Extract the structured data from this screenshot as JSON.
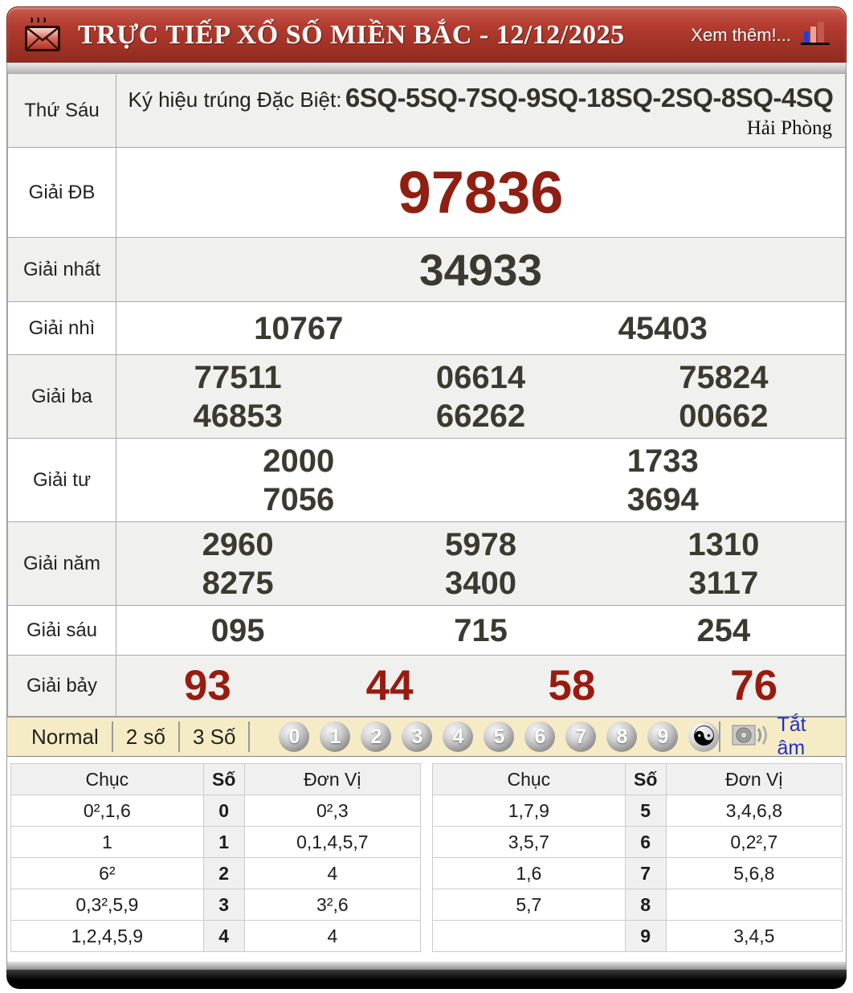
{
  "header": {
    "title": "TRỰC TIẾP XỔ SỐ MIỀN BẮC - 12/12/2025",
    "more_label": "Xem thêm!...",
    "icons": {
      "left": "envelope-icon",
      "right": "bar-chart-icon"
    }
  },
  "results": {
    "day_label": "Thứ Sáu",
    "symbol_label": "Ký hiệu trúng Đặc Biệt:",
    "symbol_codes": "6SQ-5SQ-7SQ-9SQ-18SQ-2SQ-8SQ-4SQ",
    "province": "Hải Phòng",
    "prizes": [
      {
        "label": "Giải ĐB",
        "kind": "db",
        "rows": [
          [
            "97836"
          ]
        ]
      },
      {
        "label": "Giải nhất",
        "kind": "first",
        "rows": [
          [
            "34933"
          ]
        ]
      },
      {
        "label": "Giải nhì",
        "kind": "normal",
        "rows": [
          [
            "10767",
            "45403"
          ]
        ]
      },
      {
        "label": "Giải ba",
        "kind": "normal",
        "rows": [
          [
            "77511",
            "06614",
            "75824"
          ],
          [
            "46853",
            "66262",
            "00662"
          ]
        ]
      },
      {
        "label": "Giải tư",
        "kind": "normal",
        "rows": [
          [
            "2000",
            "1733"
          ],
          [
            "7056",
            "3694"
          ]
        ]
      },
      {
        "label": "Giải năm",
        "kind": "normal",
        "rows": [
          [
            "2960",
            "5978",
            "1310"
          ],
          [
            "8275",
            "3400",
            "3117"
          ]
        ]
      },
      {
        "label": "Giải sáu",
        "kind": "normal",
        "rows": [
          [
            "095",
            "715",
            "254"
          ]
        ]
      },
      {
        "label": "Giải bảy",
        "kind": "seven",
        "rows": [
          [
            "93",
            "44",
            "58",
            "76"
          ]
        ]
      }
    ]
  },
  "controls": {
    "modes": [
      "Normal",
      "2 số",
      "3 Số"
    ],
    "balls": [
      "0",
      "1",
      "2",
      "3",
      "4",
      "5",
      "6",
      "7",
      "8",
      "9"
    ],
    "yinyang_glyph": "☯",
    "mute_label": "Tắt âm",
    "speaker_icon": "speaker-icon"
  },
  "summary": {
    "headers": {
      "tens": "Chục",
      "digit": "Số",
      "units": "Đơn Vị"
    },
    "left_rows": [
      {
        "tens": "0²,1,6",
        "digit": "0",
        "units": "0²,3"
      },
      {
        "tens": "1",
        "digit": "1",
        "units": "0,1,4,5,7"
      },
      {
        "tens": "6²",
        "digit": "2",
        "units": "4"
      },
      {
        "tens": "0,3²,5,9",
        "digit": "3",
        "units": "3²,6"
      },
      {
        "tens": "1,2,4,5,9",
        "digit": "4",
        "units": "4"
      }
    ],
    "right_rows": [
      {
        "tens": "1,7,9",
        "digit": "5",
        "units": "3,4,6,8"
      },
      {
        "tens": "3,5,7",
        "digit": "6",
        "units": "0,2²,7"
      },
      {
        "tens": "1,6",
        "digit": "7",
        "units": "5,6,8"
      },
      {
        "tens": "5,7",
        "digit": "8",
        "units": ""
      },
      {
        "tens": "",
        "digit": "9",
        "units": "3,4,5"
      }
    ]
  },
  "colors": {
    "header_red": "#a83528",
    "special_number_red": "#8e1f12",
    "number_dark": "#3a3a30",
    "control_bar_cream": "#f5ecc6",
    "mute_link_blue": "#2230cc",
    "shade_row": "#f0f0ee"
  }
}
